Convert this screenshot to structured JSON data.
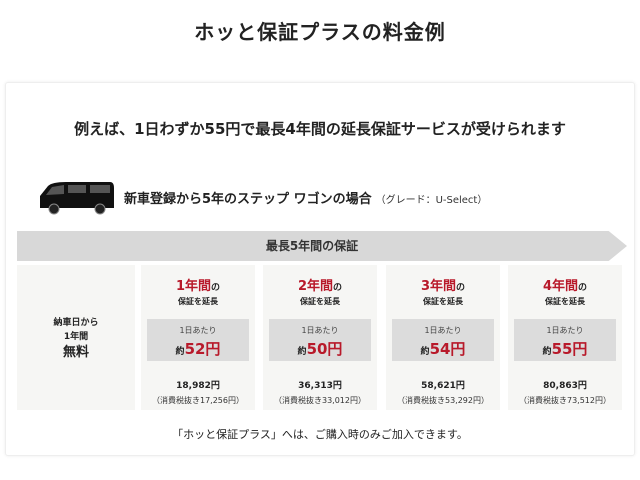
{
  "title": "ホッと保証プラスの料金例",
  "subtitle": "例えば、1日わずか55円で最長4年間の延長保証サービスが受けられます",
  "case": {
    "text": "新車登録から5年のステップ ワゴンの場合",
    "grade": "（グレード：U-Select）"
  },
  "band": "最長5年間の保証",
  "free": {
    "line1": "納車日から",
    "line2": "1年間",
    "line3": "無料"
  },
  "plans": [
    {
      "years": "1年間",
      "no": "の",
      "extend": "保証を延長",
      "per_day": "1日あたり",
      "approx": "約",
      "price": "52円",
      "total": "18,982円",
      "tax": "（消費税抜き17,256円）"
    },
    {
      "years": "2年間",
      "no": "の",
      "extend": "保証を延長",
      "per_day": "1日あたり",
      "approx": "約",
      "price": "50円",
      "total": "36,313円",
      "tax": "（消費税抜き33,012円）"
    },
    {
      "years": "3年間",
      "no": "の",
      "extend": "保証を延長",
      "per_day": "1日あたり",
      "approx": "約",
      "price": "54円",
      "total": "58,621円",
      "tax": "（消費税抜き53,292円）"
    },
    {
      "years": "4年間",
      "no": "の",
      "extend": "保証を延長",
      "per_day": "1日あたり",
      "approx": "約",
      "price": "55円",
      "total": "80,863円",
      "tax": "（消費税抜き73,512円）"
    }
  ],
  "footer": "「ホッと保証プラス」へは、ご購入時のみご加入できます。",
  "colors": {
    "accent": "#b8192a"
  }
}
